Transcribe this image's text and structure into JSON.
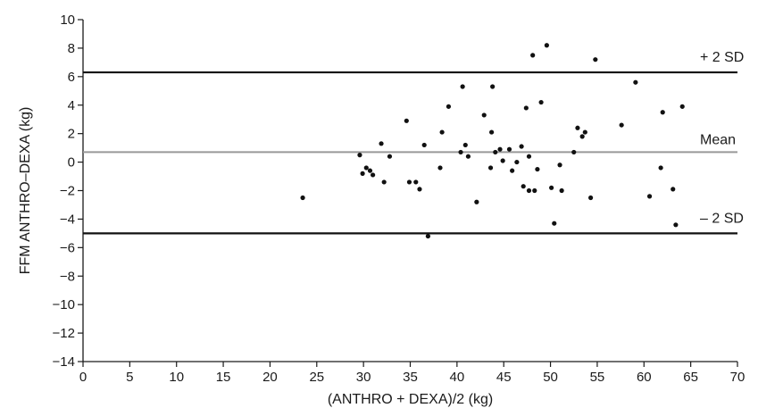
{
  "chart_data": {
    "type": "scatter",
    "xlabel": "(ANTHRO + DEXA)/2 (kg)",
    "ylabel": "FFM ANTHRO–DEXA (kg)",
    "xlim": [
      0,
      70
    ],
    "ylim": [
      -14,
      10
    ],
    "x_ticks": [
      0,
      5,
      10,
      15,
      20,
      25,
      30,
      35,
      40,
      45,
      50,
      55,
      60,
      65,
      70
    ],
    "y_ticks": [
      10,
      8,
      6,
      4,
      2,
      0,
      -2,
      -4,
      -6,
      -8,
      -10,
      -12,
      -14
    ],
    "y_tick_labels": [
      "10",
      "8",
      "6",
      "4",
      "2",
      "0",
      "−2",
      "−4",
      "−6",
      "−8",
      "−10",
      "−12",
      "−14"
    ],
    "grid": false,
    "reference_lines": [
      {
        "label": "+ 2 SD",
        "value": 6.3,
        "color": "#111111"
      },
      {
        "label": "Mean",
        "value": 0.7,
        "color": "#999999"
      },
      {
        "label": "– 2 SD",
        "value": -5.0,
        "color": "#111111"
      }
    ],
    "points": [
      [
        23.5,
        -2.5
      ],
      [
        29.6,
        0.5
      ],
      [
        29.9,
        -0.8
      ],
      [
        30.3,
        -0.4
      ],
      [
        30.7,
        -0.6
      ],
      [
        31.0,
        -0.9
      ],
      [
        31.9,
        1.3
      ],
      [
        32.2,
        -1.4
      ],
      [
        32.8,
        0.4
      ],
      [
        34.6,
        2.9
      ],
      [
        34.9,
        -1.4
      ],
      [
        35.6,
        -1.4
      ],
      [
        36.0,
        -1.9
      ],
      [
        36.5,
        1.2
      ],
      [
        36.9,
        -5.2
      ],
      [
        38.2,
        -0.4
      ],
      [
        38.4,
        2.1
      ],
      [
        39.1,
        3.9
      ],
      [
        40.4,
        0.7
      ],
      [
        40.6,
        5.3
      ],
      [
        40.9,
        1.2
      ],
      [
        41.2,
        0.4
      ],
      [
        42.1,
        -2.8
      ],
      [
        42.9,
        3.3
      ],
      [
        43.6,
        -0.4
      ],
      [
        43.7,
        2.1
      ],
      [
        43.8,
        5.3
      ],
      [
        44.1,
        0.7
      ],
      [
        44.6,
        0.9
      ],
      [
        44.9,
        0.1
      ],
      [
        45.6,
        0.9
      ],
      [
        45.9,
        -0.6
      ],
      [
        46.4,
        0.0
      ],
      [
        46.9,
        1.1
      ],
      [
        47.1,
        -1.7
      ],
      [
        47.4,
        3.8
      ],
      [
        47.7,
        0.4
      ],
      [
        47.7,
        -2.0
      ],
      [
        48.1,
        7.5
      ],
      [
        48.3,
        -2.0
      ],
      [
        48.6,
        -0.5
      ],
      [
        49.0,
        4.2
      ],
      [
        49.6,
        8.2
      ],
      [
        50.1,
        -1.8
      ],
      [
        50.4,
        -4.3
      ],
      [
        51.0,
        -0.2
      ],
      [
        51.2,
        -2.0
      ],
      [
        52.5,
        0.7
      ],
      [
        52.9,
        2.4
      ],
      [
        53.4,
        1.8
      ],
      [
        53.7,
        2.1
      ],
      [
        54.3,
        -2.5
      ],
      [
        54.8,
        7.2
      ],
      [
        57.6,
        2.6
      ],
      [
        59.1,
        5.6
      ],
      [
        60.6,
        -2.4
      ],
      [
        61.8,
        -0.4
      ],
      [
        62.0,
        3.5
      ],
      [
        63.1,
        -1.9
      ],
      [
        63.4,
        -4.4
      ],
      [
        64.1,
        3.9
      ]
    ]
  }
}
